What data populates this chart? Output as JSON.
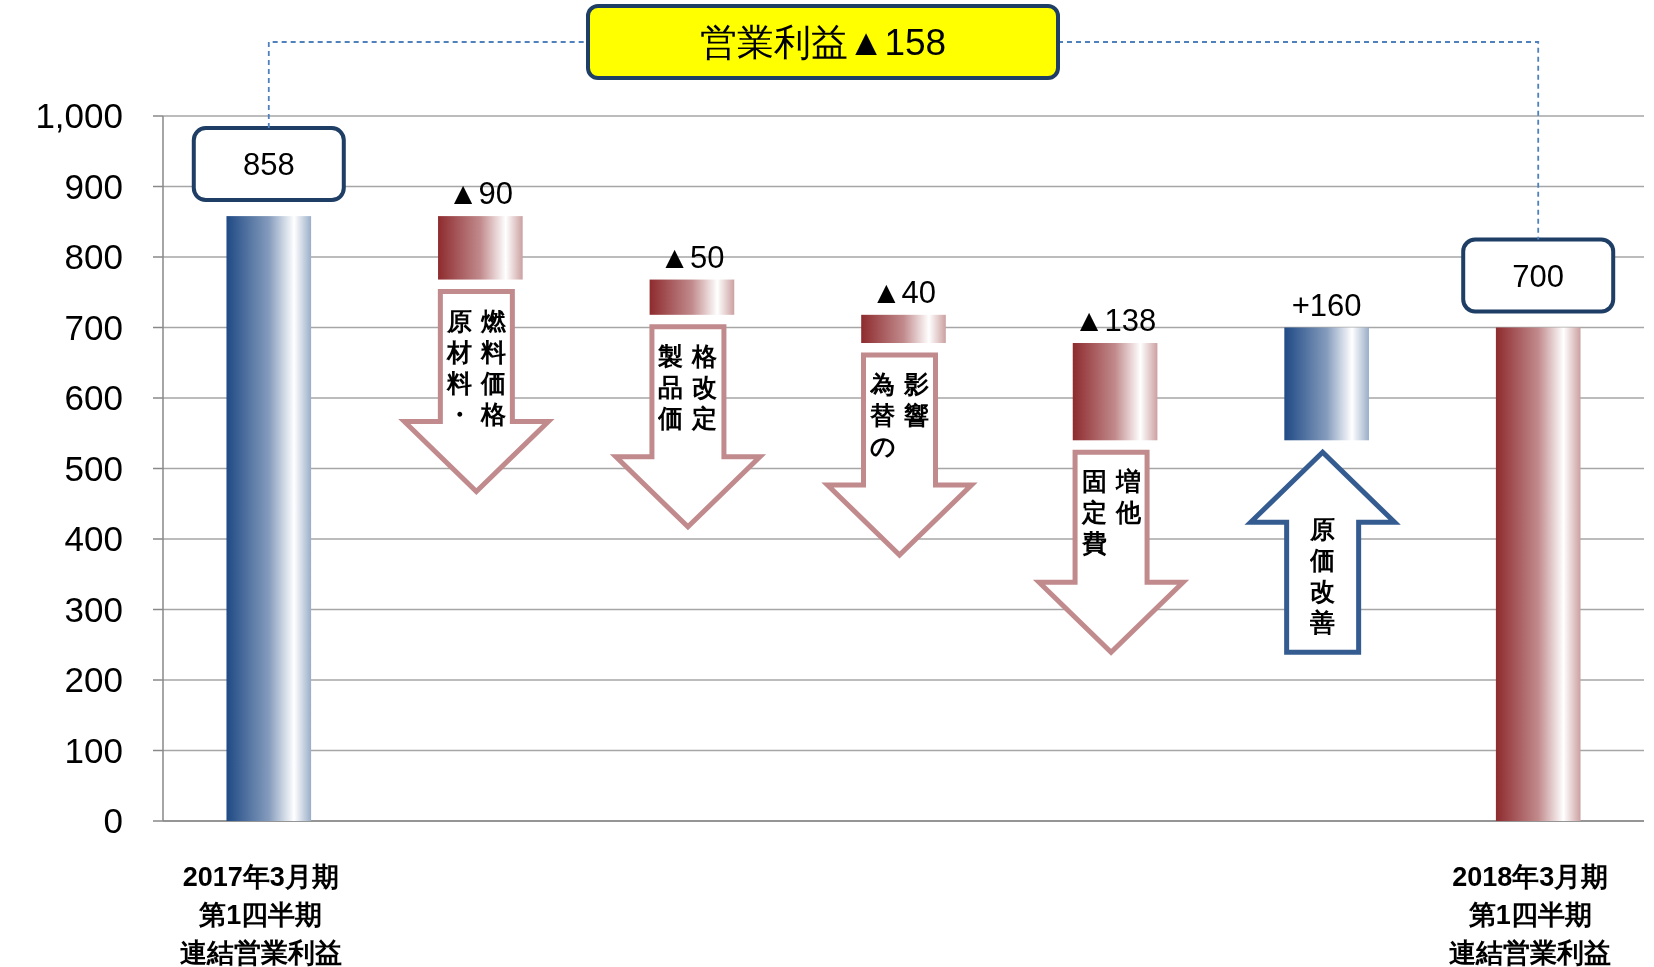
{
  "chart_data": {
    "type": "bar",
    "title": "営業利益▲158",
    "categories": [
      "2017年3月期第1四半期連結営業利益",
      "原材料・燃料価格",
      "製品価格改定",
      "為替の影響",
      "固定費増他",
      "原価改善",
      "2018年3月期第1四半期連結営業利益"
    ],
    "values": [
      858,
      -90,
      -50,
      -40,
      -138,
      160,
      700
    ],
    "base": [
      0,
      858,
      768,
      718,
      678,
      540,
      0
    ],
    "colors": [
      "#1f4a85",
      "#8e2b2e",
      "#8e2b2e",
      "#8e2b2e",
      "#8e2b2e",
      "#1f4a85",
      "#8e2b2e"
    ],
    "value_labels": [
      "858",
      "▲90",
      "▲50",
      "▲40",
      "▲138",
      "+160",
      "700"
    ],
    "ylim": [
      0,
      1000
    ],
    "yticks": [
      0,
      100,
      200,
      300,
      400,
      500,
      600,
      700,
      800,
      900,
      {
        "value": 1000,
        "label": "1,000"
      }
    ],
    "grid": "y"
  }
}
